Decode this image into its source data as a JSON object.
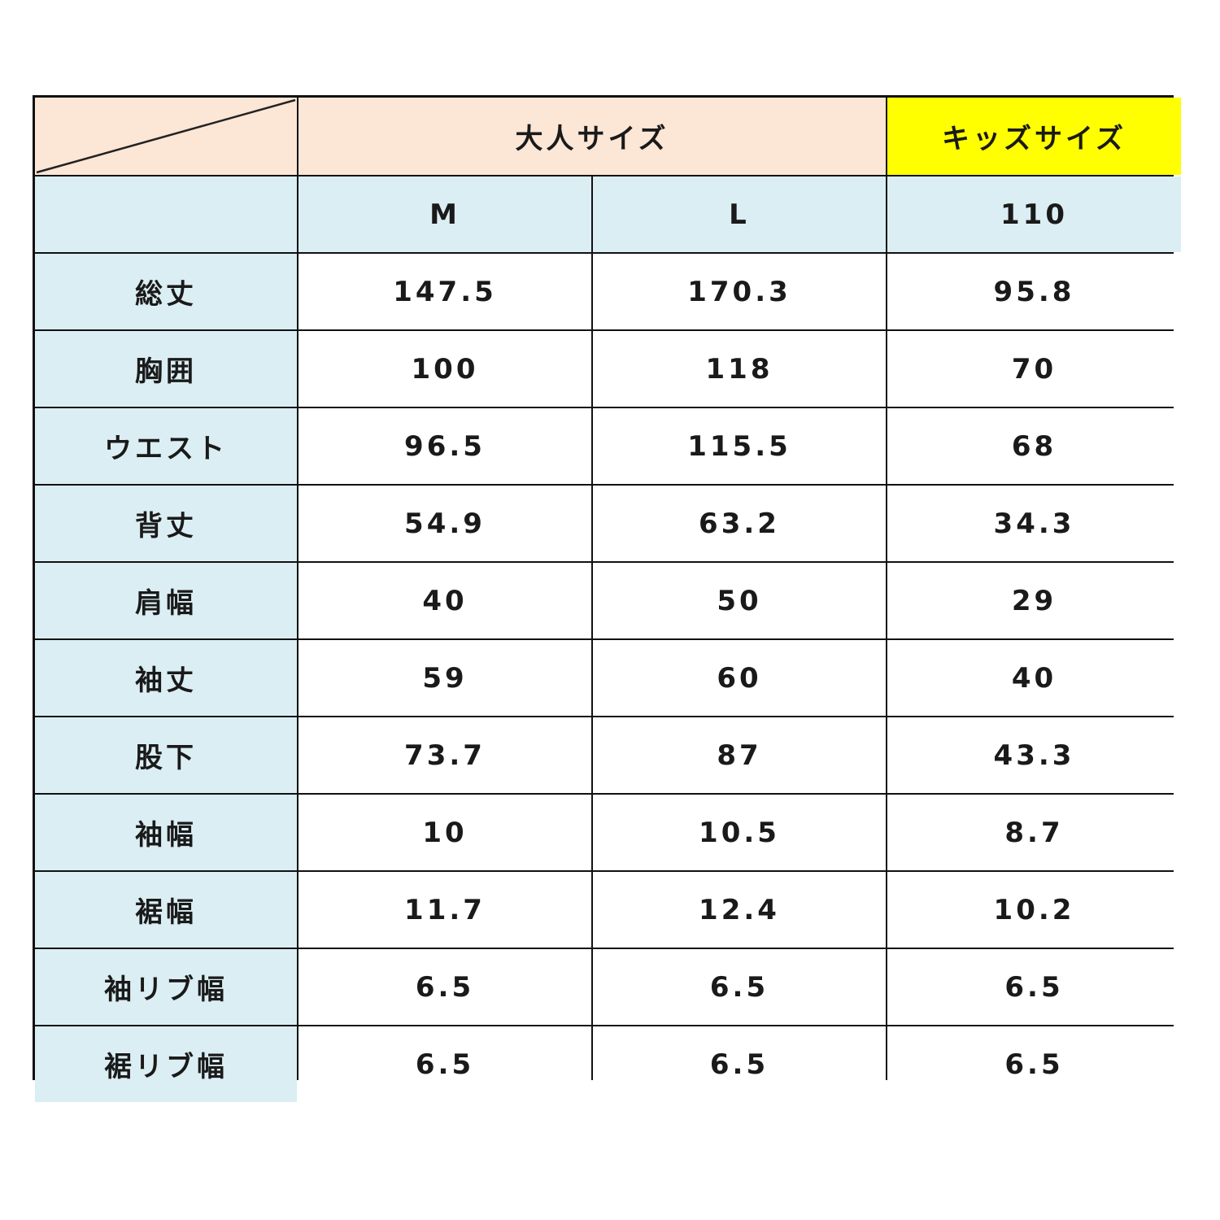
{
  "header": {
    "adult": "大人サイズ",
    "kids": "キッズサイズ"
  },
  "sizes": [
    "M",
    "L",
    "110"
  ],
  "colors": {
    "header_bg": "#fce6d6",
    "kids_bg": "#ffff00",
    "label_bg": "#dbeef4"
  },
  "rows": [
    {
      "label": "総丈",
      "values": [
        "147.5",
        "170.3",
        "95.8"
      ]
    },
    {
      "label": "胸囲",
      "values": [
        "100",
        "118",
        "70"
      ]
    },
    {
      "label": "ウエスト",
      "values": [
        "96.5",
        "115.5",
        "68"
      ]
    },
    {
      "label": "背丈",
      "values": [
        "54.9",
        "63.2",
        "34.3"
      ]
    },
    {
      "label": "肩幅",
      "values": [
        "40",
        "50",
        "29"
      ]
    },
    {
      "label": "袖丈",
      "values": [
        "59",
        "60",
        "40"
      ]
    },
    {
      "label": "股下",
      "values": [
        "73.7",
        "87",
        "43.3"
      ]
    },
    {
      "label": "袖幅",
      "values": [
        "10",
        "10.5",
        "8.7"
      ]
    },
    {
      "label": "裾幅",
      "values": [
        "11.7",
        "12.4",
        "10.2"
      ]
    },
    {
      "label": "袖リブ幅",
      "values": [
        "6.5",
        "6.5",
        "6.5"
      ]
    },
    {
      "label": "裾リブ幅",
      "values": [
        "6.5",
        "6.5",
        "6.5"
      ]
    }
  ]
}
